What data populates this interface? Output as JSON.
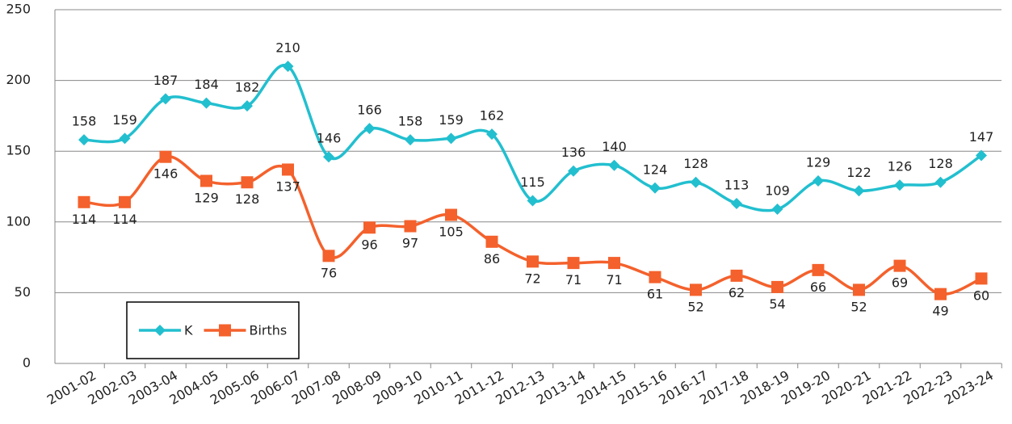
{
  "chart_data": {
    "type": "line",
    "categories": [
      "2001-02",
      "2002-03",
      "2003-04",
      "2004-05",
      "2005-06",
      "2006-07",
      "2007-08",
      "2008-09",
      "2009-10",
      "2010-11",
      "2011-12",
      "2012-13",
      "2013-14",
      "2014-15",
      "2015-16",
      "2016-17",
      "2017-18",
      "2018-19",
      "2019-20",
      "2020-21",
      "2021-22",
      "2022-23",
      "2023-24"
    ],
    "series": [
      {
        "name": "K",
        "color": "#22bfcf",
        "marker": "diamond",
        "values": [
          158,
          159,
          187,
          184,
          182,
          210,
          146,
          166,
          158,
          159,
          162,
          115,
          136,
          140,
          124,
          128,
          113,
          109,
          129,
          122,
          126,
          128,
          147
        ]
      },
      {
        "name": "Births",
        "color": "#f4612c",
        "marker": "square",
        "values": [
          114,
          114,
          146,
          129,
          128,
          137,
          76,
          96,
          97,
          105,
          86,
          72,
          71,
          71,
          61,
          52,
          62,
          54,
          66,
          52,
          69,
          49,
          60
        ]
      }
    ],
    "ylim": [
      0,
      250
    ],
    "yticks": [
      0,
      50,
      100,
      150,
      200,
      250
    ],
    "grid": true,
    "legend": "lower left"
  }
}
